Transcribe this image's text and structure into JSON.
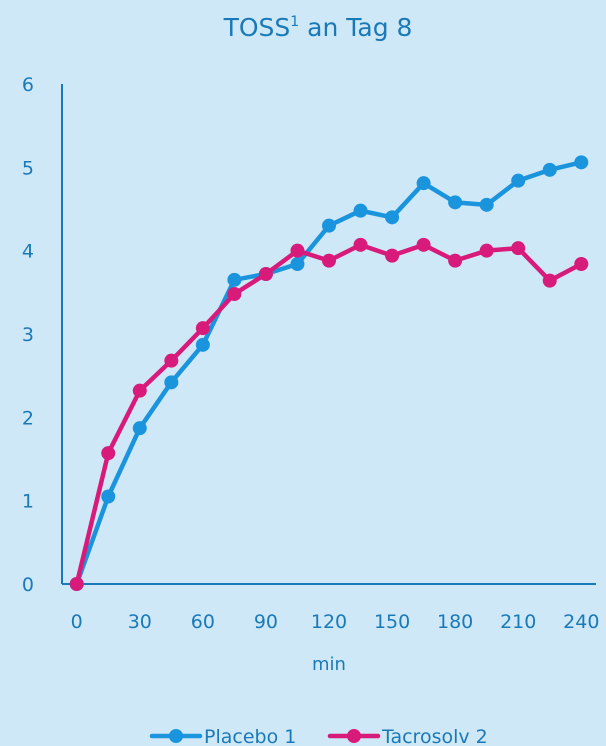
{
  "chart_data": {
    "type": "line",
    "title": "TOSS",
    "title_superscript": "1",
    "title_suffix": " an Tag 8",
    "xlabel": "min",
    "ylabel": "",
    "x": [
      0,
      15,
      30,
      45,
      60,
      75,
      90,
      105,
      120,
      135,
      150,
      165,
      180,
      195,
      210,
      225,
      240
    ],
    "x_ticks": [
      0,
      30,
      60,
      90,
      120,
      150,
      180,
      210,
      240
    ],
    "y_ticks": [
      0,
      1,
      2,
      3,
      4,
      5,
      6
    ],
    "xlim": [
      -7,
      247
    ],
    "ylim": [
      0,
      6
    ],
    "grid": false,
    "legend_position": "bottom",
    "series": [
      {
        "name": "Placebo 1",
        "color": "#1a94dc",
        "values": [
          0,
          1.05,
          1.87,
          2.42,
          2.87,
          3.65,
          3.72,
          3.84,
          4.3,
          4.48,
          4.4,
          4.81,
          4.58,
          4.55,
          4.84,
          4.97,
          5.06
        ]
      },
      {
        "name": "Tacrosolv 2",
        "color": "#d81b7a",
        "values": [
          0,
          1.57,
          2.32,
          2.68,
          3.07,
          3.48,
          3.72,
          4.0,
          3.88,
          4.07,
          3.94,
          4.07,
          3.88,
          4.0,
          4.03,
          3.64,
          3.84
        ]
      }
    ]
  }
}
